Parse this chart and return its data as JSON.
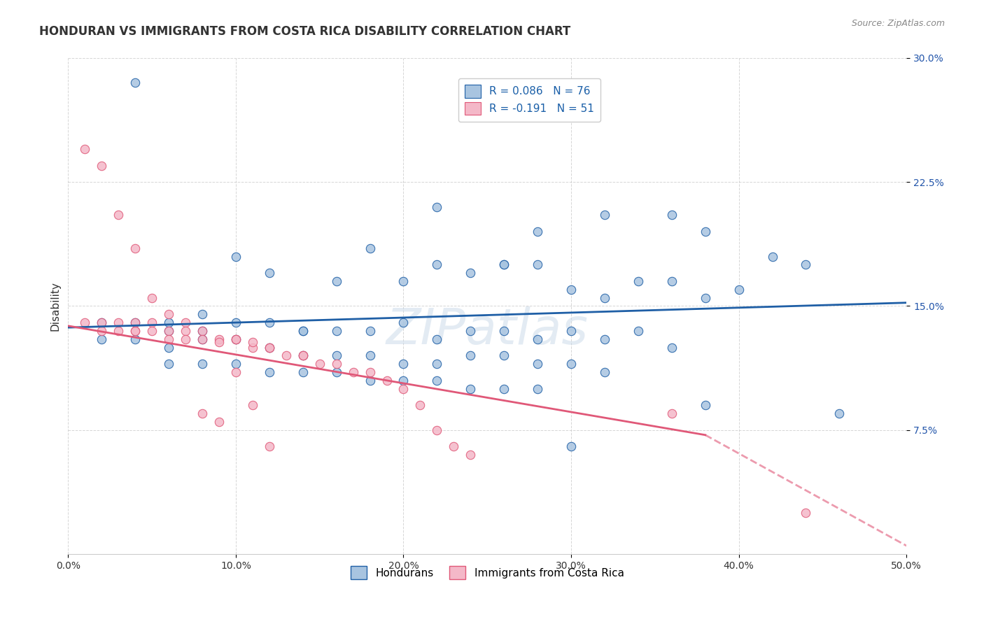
{
  "title": "HONDURAN VS IMMIGRANTS FROM COSTA RICA DISABILITY CORRELATION CHART",
  "source": "Source: ZipAtlas.com",
  "xlabel_bottom": "",
  "ylabel": "Disability",
  "x_min": 0.0,
  "x_max": 0.5,
  "y_min": 0.0,
  "y_max": 0.3,
  "x_ticks": [
    0.0,
    0.1,
    0.2,
    0.3,
    0.4,
    0.5
  ],
  "x_tick_labels": [
    "0.0%",
    "10.0%",
    "20.0%",
    "30.0%",
    "40.0%",
    "50.0%"
  ],
  "y_ticks": [
    0.075,
    0.15,
    0.225,
    0.3
  ],
  "y_tick_labels": [
    "7.5%",
    "15.0%",
    "22.5%",
    "30.0%"
  ],
  "blue_R": 0.086,
  "blue_N": 76,
  "pink_R": -0.191,
  "pink_N": 51,
  "blue_color": "#a8c4e0",
  "blue_line_color": "#1f5fa6",
  "pink_color": "#f4b8c8",
  "pink_line_color": "#e05878",
  "watermark": "ZIPatlas",
  "legend_label_blue": "Hondurans",
  "legend_label_pink": "Immigrants from Costa Rica",
  "blue_scatter_x": [
    0.04,
    0.22,
    0.28,
    0.26,
    0.32,
    0.36,
    0.38,
    0.06,
    0.08,
    0.1,
    0.12,
    0.14,
    0.16,
    0.18,
    0.2,
    0.22,
    0.24,
    0.26,
    0.28,
    0.3,
    0.32,
    0.34,
    0.36,
    0.38,
    0.4,
    0.42,
    0.44,
    0.02,
    0.04,
    0.06,
    0.08,
    0.1,
    0.12,
    0.14,
    0.16,
    0.18,
    0.2,
    0.22,
    0.24,
    0.26,
    0.28,
    0.3,
    0.32,
    0.34,
    0.36,
    0.38,
    0.02,
    0.04,
    0.06,
    0.08,
    0.1,
    0.12,
    0.14,
    0.16,
    0.18,
    0.2,
    0.22,
    0.24,
    0.26,
    0.28,
    0.3,
    0.32,
    0.06,
    0.08,
    0.1,
    0.12,
    0.14,
    0.16,
    0.18,
    0.2,
    0.22,
    0.24,
    0.26,
    0.28,
    0.46,
    0.3
  ],
  "blue_scatter_y": [
    0.285,
    0.21,
    0.195,
    0.175,
    0.205,
    0.205,
    0.195,
    0.135,
    0.145,
    0.18,
    0.17,
    0.135,
    0.165,
    0.185,
    0.165,
    0.175,
    0.17,
    0.175,
    0.175,
    0.16,
    0.155,
    0.165,
    0.165,
    0.155,
    0.16,
    0.18,
    0.175,
    0.14,
    0.14,
    0.14,
    0.135,
    0.14,
    0.14,
    0.135,
    0.135,
    0.135,
    0.14,
    0.13,
    0.135,
    0.135,
    0.13,
    0.135,
    0.13,
    0.135,
    0.125,
    0.09,
    0.13,
    0.13,
    0.125,
    0.13,
    0.13,
    0.125,
    0.12,
    0.12,
    0.12,
    0.115,
    0.115,
    0.12,
    0.12,
    0.115,
    0.115,
    0.11,
    0.115,
    0.115,
    0.115,
    0.11,
    0.11,
    0.11,
    0.105,
    0.105,
    0.105,
    0.1,
    0.1,
    0.1,
    0.085,
    0.065
  ],
  "pink_scatter_x": [
    0.01,
    0.02,
    0.02,
    0.03,
    0.03,
    0.04,
    0.04,
    0.04,
    0.05,
    0.05,
    0.06,
    0.06,
    0.07,
    0.07,
    0.08,
    0.08,
    0.09,
    0.09,
    0.1,
    0.1,
    0.11,
    0.11,
    0.12,
    0.12,
    0.13,
    0.14,
    0.14,
    0.15,
    0.16,
    0.17,
    0.18,
    0.19,
    0.2,
    0.21,
    0.22,
    0.23,
    0.24,
    0.01,
    0.02,
    0.03,
    0.04,
    0.05,
    0.06,
    0.07,
    0.08,
    0.09,
    0.1,
    0.11,
    0.12,
    0.36,
    0.44
  ],
  "pink_scatter_y": [
    0.14,
    0.135,
    0.14,
    0.135,
    0.14,
    0.135,
    0.135,
    0.14,
    0.14,
    0.135,
    0.135,
    0.13,
    0.14,
    0.135,
    0.135,
    0.13,
    0.13,
    0.128,
    0.13,
    0.13,
    0.125,
    0.128,
    0.125,
    0.125,
    0.12,
    0.12,
    0.12,
    0.115,
    0.115,
    0.11,
    0.11,
    0.105,
    0.1,
    0.09,
    0.075,
    0.065,
    0.06,
    0.245,
    0.235,
    0.205,
    0.185,
    0.155,
    0.145,
    0.13,
    0.085,
    0.08,
    0.11,
    0.09,
    0.065,
    0.085,
    0.025
  ]
}
